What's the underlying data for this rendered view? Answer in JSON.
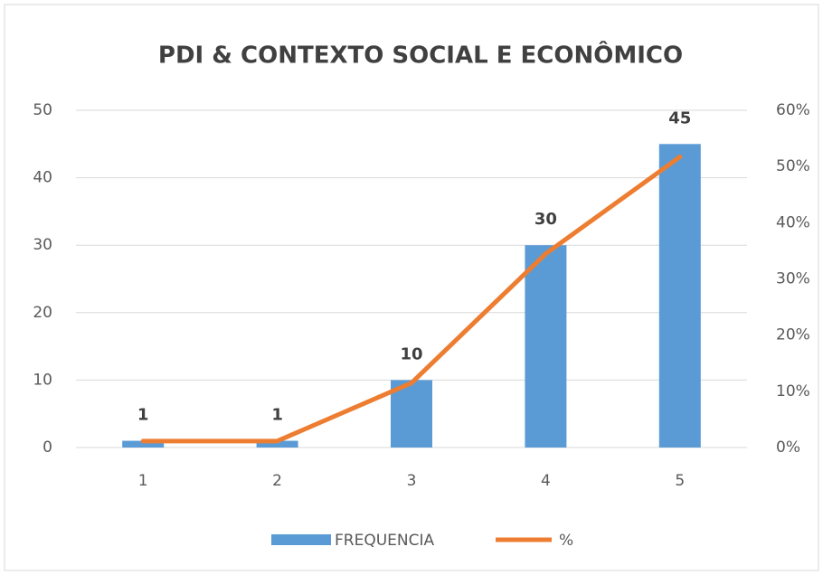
{
  "chart_data": {
    "type": "bar_line",
    "title": "PDI & CONTEXTO SOCIAL E ECONÔMICO",
    "categories": [
      "1",
      "2",
      "3",
      "4",
      "5"
    ],
    "series": [
      {
        "name": "FREQUENCIA",
        "type": "bar",
        "color": "#5b9bd5",
        "values": [
          1,
          1,
          10,
          30,
          45
        ]
      },
      {
        "name": "%",
        "type": "line",
        "axis": "y2",
        "color": "#ed7d31",
        "values": [
          1.15,
          1.15,
          11.49,
          34.48,
          51.72
        ]
      }
    ],
    "ylim": [
      0,
      50
    ],
    "yticks": [
      0,
      10,
      20,
      30,
      40,
      50
    ],
    "y2lim": [
      0,
      60
    ],
    "y2ticks": [
      {
        "value": 0,
        "label": "0%"
      },
      {
        "value": 10,
        "label": "10%"
      },
      {
        "value": 20,
        "label": "20%"
      },
      {
        "value": 30,
        "label": "30%"
      },
      {
        "value": 40,
        "label": "40%"
      },
      {
        "value": 50,
        "label": "50%"
      },
      {
        "value": 60,
        "label": "60%"
      }
    ],
    "grid": true,
    "legend": "bottom"
  }
}
